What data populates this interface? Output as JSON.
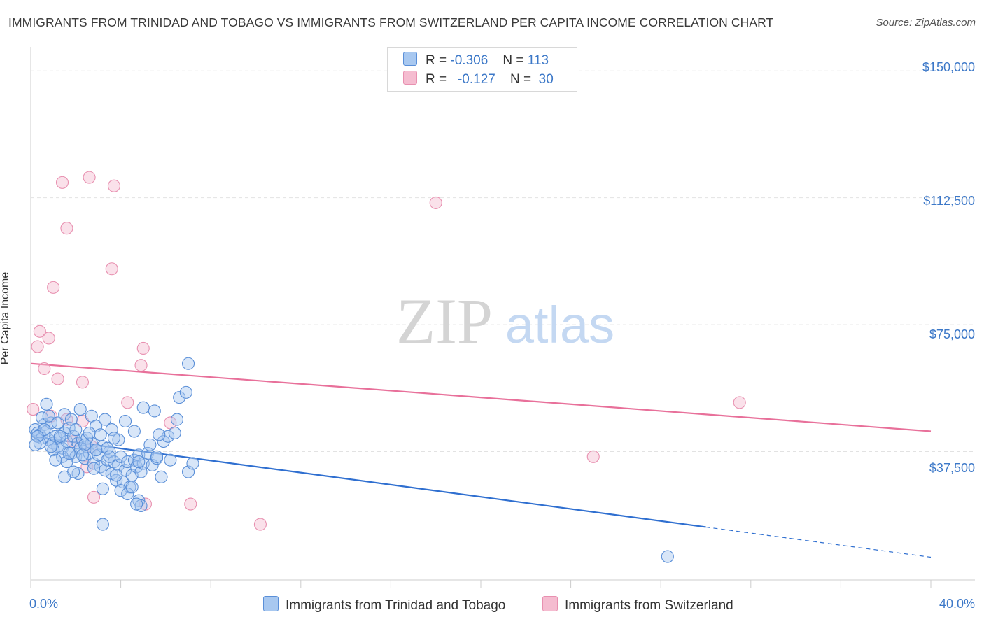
{
  "header": {
    "title": "IMMIGRANTS FROM TRINIDAD AND TOBAGO VS IMMIGRANTS FROM SWITZERLAND PER CAPITA INCOME CORRELATION CHART",
    "source": "Source: ZipAtlas.com"
  },
  "watermark": {
    "zip": "ZIP",
    "atlas": "atlas"
  },
  "legend": {
    "rows": [
      {
        "r_label": "R =",
        "r_value": "-0.306",
        "n_label": "N =",
        "n_value": "113"
      },
      {
        "r_label": "R =",
        "r_value": "-0.127",
        "n_label": "N =",
        "n_value": "30"
      }
    ]
  },
  "colors": {
    "blue_fill": "#a8c8f0",
    "blue_stroke": "#5a8fd8",
    "blue_line": "#2f6fd0",
    "pink_fill": "#f5bcd0",
    "pink_stroke": "#e890b0",
    "pink_line": "#e8709a",
    "accent_text": "#3c78c8"
  },
  "chart_data": {
    "type": "scatter",
    "title": "IMMIGRANTS FROM TRINIDAD AND TOBAGO VS IMMIGRANTS FROM SWITZERLAND PER CAPITA INCOME CORRELATION CHART",
    "xlabel": "",
    "ylabel": "Per Capita Income",
    "xlim": [
      0,
      40
    ],
    "ylim": [
      0,
      155000
    ],
    "x_tick_labels": [
      "0.0%",
      "40.0%"
    ],
    "y_ticks": [
      {
        "value": 37500,
        "label": "$37,500"
      },
      {
        "value": 75000,
        "label": "$75,000"
      },
      {
        "value": 112500,
        "label": "$112,500"
      },
      {
        "value": 150000,
        "label": "$150,000"
      }
    ],
    "grid": true,
    "series": [
      {
        "name": "Immigrants from Trinidad and Tobago",
        "color": "blue",
        "trend": {
          "x": [
            0,
            30,
            40
          ],
          "y": [
            42000,
            15200,
            6300
          ],
          "solid_until": 30
        },
        "points": [
          [
            0.2,
            44000
          ],
          [
            0.3,
            43000
          ],
          [
            0.4,
            42500
          ],
          [
            0.5,
            41500
          ],
          [
            0.6,
            45500
          ],
          [
            0.7,
            43500
          ],
          [
            0.8,
            41000
          ],
          [
            0.9,
            46000
          ],
          [
            1.0,
            40000
          ],
          [
            1.1,
            42000
          ],
          [
            1.2,
            39000
          ],
          [
            1.3,
            41500
          ],
          [
            1.4,
            38500
          ],
          [
            1.5,
            43000
          ],
          [
            1.6,
            40500
          ],
          [
            1.7,
            44500
          ],
          [
            1.8,
            37000
          ],
          [
            1.9,
            42000
          ],
          [
            2.0,
            36000
          ],
          [
            2.1,
            40000
          ],
          [
            2.2,
            38500
          ],
          [
            2.3,
            41000
          ],
          [
            2.4,
            35500
          ],
          [
            2.5,
            39000
          ],
          [
            2.6,
            37000
          ],
          [
            2.7,
            40000
          ],
          [
            2.8,
            34000
          ],
          [
            2.9,
            38000
          ],
          [
            3.0,
            36500
          ],
          [
            3.1,
            33000
          ],
          [
            3.2,
            39000
          ],
          [
            3.3,
            32000
          ],
          [
            3.4,
            35000
          ],
          [
            3.5,
            37500
          ],
          [
            3.6,
            31000
          ],
          [
            3.7,
            34500
          ],
          [
            3.8,
            29000
          ],
          [
            3.9,
            33500
          ],
          [
            4.0,
            36000
          ],
          [
            4.1,
            28500
          ],
          [
            4.2,
            32000
          ],
          [
            4.3,
            34500
          ],
          [
            4.4,
            27000
          ],
          [
            4.5,
            30500
          ],
          [
            4.6,
            35000
          ],
          [
            4.7,
            33000
          ],
          [
            4.8,
            36500
          ],
          [
            4.9,
            31500
          ],
          [
            5.0,
            34000
          ],
          [
            5.2,
            37000
          ],
          [
            5.4,
            33500
          ],
          [
            5.6,
            35500
          ],
          [
            5.8,
            30000
          ],
          [
            0.5,
            47500
          ],
          [
            0.8,
            48000
          ],
          [
            1.2,
            46000
          ],
          [
            1.5,
            48500
          ],
          [
            1.8,
            47000
          ],
          [
            2.0,
            44000
          ],
          [
            2.2,
            50000
          ],
          [
            2.5,
            41500
          ],
          [
            2.7,
            48000
          ],
          [
            2.9,
            45000
          ],
          [
            3.1,
            42500
          ],
          [
            3.3,
            47000
          ],
          [
            3.6,
            44000
          ],
          [
            3.9,
            41000
          ],
          [
            4.2,
            46500
          ],
          [
            4.6,
            43500
          ],
          [
            5.0,
            50500
          ],
          [
            5.3,
            39500
          ],
          [
            5.6,
            36000
          ],
          [
            5.9,
            40500
          ],
          [
            6.2,
            35000
          ],
          [
            6.5,
            47000
          ],
          [
            6.6,
            53500
          ],
          [
            6.9,
            55000
          ],
          [
            0.7,
            51500
          ],
          [
            1.4,
            36000
          ],
          [
            2.4,
            39500
          ],
          [
            2.6,
            43000
          ],
          [
            3.4,
            38500
          ],
          [
            3.7,
            41500
          ],
          [
            4.0,
            26000
          ],
          [
            4.3,
            25000
          ],
          [
            4.8,
            23000
          ],
          [
            0.4,
            40000
          ],
          [
            1.0,
            38000
          ],
          [
            1.6,
            34500
          ],
          [
            2.1,
            31000
          ],
          [
            2.8,
            32500
          ],
          [
            3.2,
            26500
          ],
          [
            3.5,
            36000
          ],
          [
            1.1,
            35000
          ],
          [
            1.9,
            31500
          ],
          [
            0.9,
            39000
          ],
          [
            2.3,
            36500
          ],
          [
            0.6,
            44000
          ],
          [
            1.3,
            42000
          ],
          [
            4.5,
            27000
          ],
          [
            3.8,
            30500
          ],
          [
            0.3,
            42000
          ],
          [
            1.7,
            37000
          ],
          [
            5.5,
            49500
          ],
          [
            2.9,
            38000
          ],
          [
            6.1,
            42000
          ],
          [
            6.4,
            43000
          ],
          [
            5.7,
            42500
          ],
          [
            0.2,
            39500
          ],
          [
            7.0,
            31500
          ],
          [
            7.2,
            34000
          ],
          [
            3.2,
            16000
          ],
          [
            4.9,
            21500
          ],
          [
            4.7,
            22000
          ],
          [
            7.0,
            63500
          ],
          [
            4.8,
            34500
          ],
          [
            28.3,
            6500
          ],
          [
            1.5,
            30000
          ]
        ]
      },
      {
        "name": "Immigrants from Switzerland",
        "color": "pink",
        "trend": {
          "x": [
            0,
            40
          ],
          "y": [
            63500,
            43500
          ]
        },
        "points": [
          [
            1.4,
            117000
          ],
          [
            2.6,
            118500
          ],
          [
            3.7,
            116000
          ],
          [
            1.6,
            103500
          ],
          [
            18.0,
            111000
          ],
          [
            3.6,
            91500
          ],
          [
            1.0,
            86000
          ],
          [
            0.4,
            73000
          ],
          [
            0.8,
            71000
          ],
          [
            0.3,
            68500
          ],
          [
            5.0,
            68000
          ],
          [
            4.9,
            63000
          ],
          [
            0.6,
            62000
          ],
          [
            1.2,
            59000
          ],
          [
            2.3,
            58000
          ],
          [
            4.3,
            52000
          ],
          [
            31.5,
            52000
          ],
          [
            0.1,
            50000
          ],
          [
            0.9,
            48000
          ],
          [
            1.6,
            47000
          ],
          [
            2.3,
            46500
          ],
          [
            6.2,
            46000
          ],
          [
            1.9,
            40500
          ],
          [
            2.7,
            39000
          ],
          [
            25.0,
            36000
          ],
          [
            2.5,
            33000
          ],
          [
            2.8,
            24000
          ],
          [
            5.1,
            22000
          ],
          [
            7.1,
            22000
          ],
          [
            10.2,
            16000
          ]
        ]
      }
    ]
  },
  "axis": {
    "ylabel": "Per Capita Income",
    "ytick_labels": [
      "$150,000",
      "$112,500",
      "$75,000",
      "$37,500"
    ],
    "xtick_left": "0.0%",
    "xtick_right": "40.0%"
  },
  "bottom_legend": {
    "items": [
      {
        "label": "Immigrants from Trinidad and Tobago"
      },
      {
        "label": "Immigrants from Switzerland"
      }
    ]
  }
}
